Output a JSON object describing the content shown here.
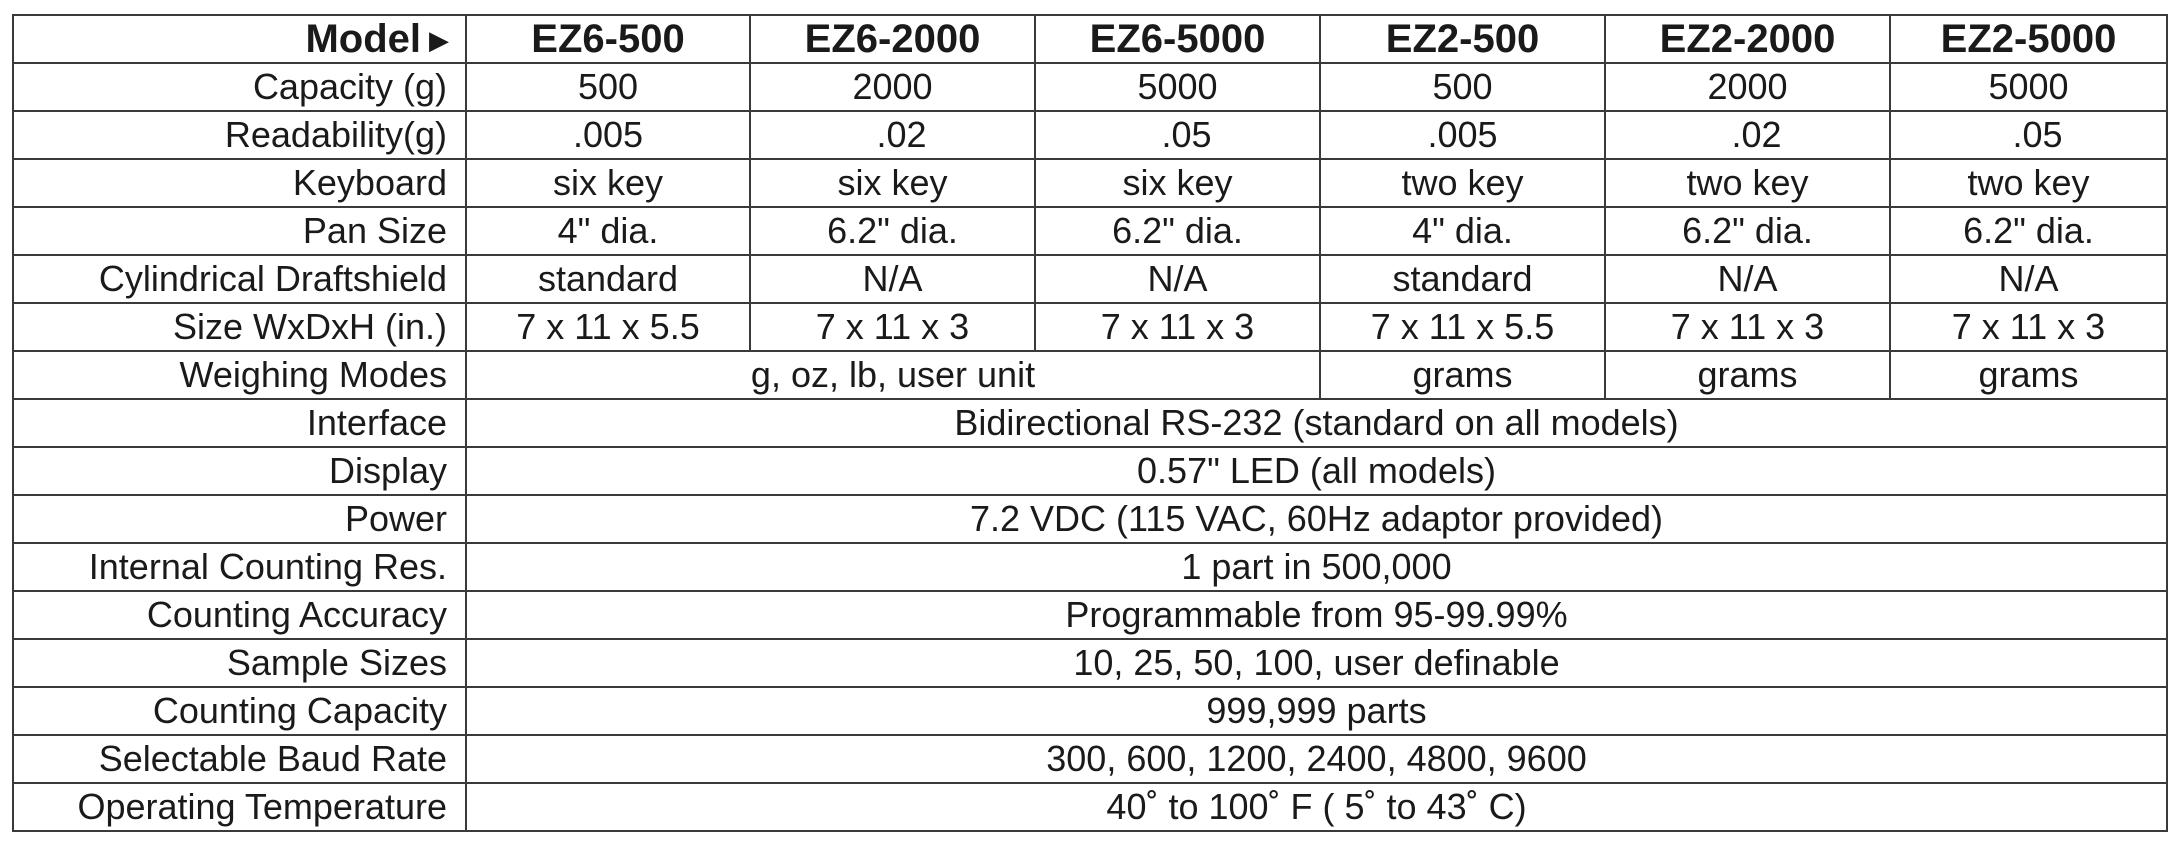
{
  "header": {
    "label": "Model",
    "models": [
      "EZ6-500",
      "EZ6-2000",
      "EZ6-5000",
      "EZ2-500",
      "EZ2-2000",
      "EZ2-5000"
    ]
  },
  "rows": {
    "capacity": {
      "label": "Capacity (g)",
      "values": [
        "500",
        "2000",
        "5000",
        "500",
        "2000",
        "5000"
      ]
    },
    "readability": {
      "label": "Readability(g)",
      "values": [
        ".005",
        ".02",
        ".05",
        ".005",
        ".02",
        ".05"
      ]
    },
    "keyboard": {
      "label": "Keyboard",
      "values": [
        "six key",
        "six key",
        "six key",
        "two key",
        "two key",
        "two key"
      ]
    },
    "pan_size": {
      "label": "Pan Size",
      "values": [
        "4\" dia.",
        "6.2\" dia.",
        "6.2\" dia.",
        "4\" dia.",
        "6.2\" dia.",
        "6.2\" dia."
      ]
    },
    "draftshield": {
      "label": "Cylindrical Draftshield",
      "values": [
        "standard",
        "N/A",
        "N/A",
        "standard",
        "N/A",
        "N/A"
      ]
    },
    "size": {
      "label": "Size WxDxH (in.)",
      "values": [
        "7 x 11 x 5.5",
        "7 x 11 x 3",
        "7 x 11 x 3",
        "7 x 11 x 5.5",
        "7 x 11 x 3",
        "7 x 11 x 3"
      ]
    },
    "weighing_modes": {
      "label": "Weighing Modes",
      "ez6": "g, oz, lb, user unit",
      "ez2": [
        "grams",
        "grams",
        "grams"
      ]
    },
    "interface": {
      "label": "Interface",
      "value": "Bidirectional RS-232 (standard on all models)"
    },
    "display": {
      "label": "Display",
      "value": "0.57\" LED (all models)"
    },
    "power": {
      "label": "Power",
      "value": "7.2 VDC (115 VAC, 60Hz adaptor provided)"
    },
    "counting_res": {
      "label": "Internal Counting Res.",
      "value": "1 part in 500,000"
    },
    "counting_accuracy": {
      "label": "Counting Accuracy",
      "value": "Programmable from 95-99.99%"
    },
    "sample_sizes": {
      "label": "Sample Sizes",
      "value": "10, 25, 50, 100, user definable"
    },
    "counting_capacity": {
      "label": "Counting Capacity",
      "value": "999,999 parts"
    },
    "baud_rate": {
      "label": "Selectable Baud Rate",
      "value": "300, 600, 1200, 2400, 4800, 9600"
    },
    "operating_temp": {
      "label": "Operating Temperature",
      "value": "40˚ to 100˚ F ( 5˚ to 43˚ C)"
    }
  }
}
